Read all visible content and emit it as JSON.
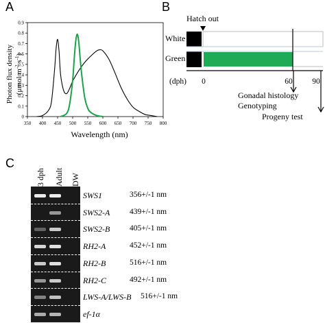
{
  "panelA": {
    "letter": "A",
    "ylabel_line1": "Photon flux density",
    "ylabel_line2": "(μmol m",
    "ylabel_sup1": "-2",
    "ylabel_mid": " s",
    "ylabel_sup2": "-1",
    "ylabel_end": ")",
    "xlabel": "Wavelength (nm)",
    "xticks": [
      "350",
      "400",
      "450",
      "500",
      "550",
      "600",
      "650",
      "700",
      "750",
      "800"
    ],
    "yticks": [
      "0",
      "0.1",
      "0.2",
      "0.3",
      "0.4",
      "0.5",
      "0.6",
      "0.7",
      "0.8",
      "0.9"
    ]
  },
  "panelB": {
    "letter": "B",
    "hatch_label": "Hatch out",
    "row_white": "White",
    "row_green": "Green",
    "dph_label": "(dph)",
    "tick_0": "0",
    "tick_60": "60",
    "tick_90": "90",
    "event1": "Gonadal histology",
    "event2": "Genotyping",
    "event3": "Progeny test"
  },
  "panelC": {
    "letter": "C",
    "lanes": [
      "3 dph",
      "Adult",
      "DW"
    ],
    "genes": [
      {
        "name": "SWS1",
        "size": "356+/-1 nm"
      },
      {
        "name": "SWS2-A",
        "size": "439+/-1 nm"
      },
      {
        "name": "SWS2-B",
        "size": "405+/-1 nm"
      },
      {
        "name": "RH2-A",
        "size": "452+/-1 nm"
      },
      {
        "name": "RH2-B",
        "size": "516+/-1 nm"
      },
      {
        "name": "RH2-C",
        "size": "492+/-1 nm"
      },
      {
        "name": "LWS-A/LWS-B",
        "size": "516+/-1 nm"
      },
      {
        "name": "ef-1α",
        "size": ""
      }
    ]
  },
  "chart_data": {
    "type": "line",
    "xlabel": "Wavelength (nm)",
    "ylabel": "Photon flux density (μmol m-2 s-1)",
    "xlim": [
      350,
      800
    ],
    "ylim": [
      0,
      0.9
    ],
    "series": [
      {
        "color": "#000000",
        "x": [
          380,
          400,
          420,
          430,
          440,
          445,
          450,
          455,
          460,
          470,
          480,
          490,
          500,
          520,
          540,
          560,
          580,
          590,
          600,
          620,
          640,
          660,
          680,
          700,
          720,
          740,
          760,
          780
        ],
        "y": [
          0,
          0.01,
          0.06,
          0.15,
          0.45,
          0.65,
          0.74,
          0.62,
          0.4,
          0.25,
          0.22,
          0.27,
          0.34,
          0.44,
          0.52,
          0.58,
          0.63,
          0.64,
          0.63,
          0.55,
          0.42,
          0.28,
          0.17,
          0.09,
          0.05,
          0.02,
          0.01,
          0
        ]
      },
      {
        "color": "#1aa34a",
        "x": [
          460,
          480,
          490,
          500,
          505,
          510,
          515,
          520,
          525,
          530,
          540,
          550,
          560,
          580,
          600
        ],
        "y": [
          0,
          0.03,
          0.12,
          0.35,
          0.55,
          0.72,
          0.79,
          0.72,
          0.55,
          0.4,
          0.18,
          0.08,
          0.04,
          0.01,
          0
        ]
      }
    ]
  }
}
